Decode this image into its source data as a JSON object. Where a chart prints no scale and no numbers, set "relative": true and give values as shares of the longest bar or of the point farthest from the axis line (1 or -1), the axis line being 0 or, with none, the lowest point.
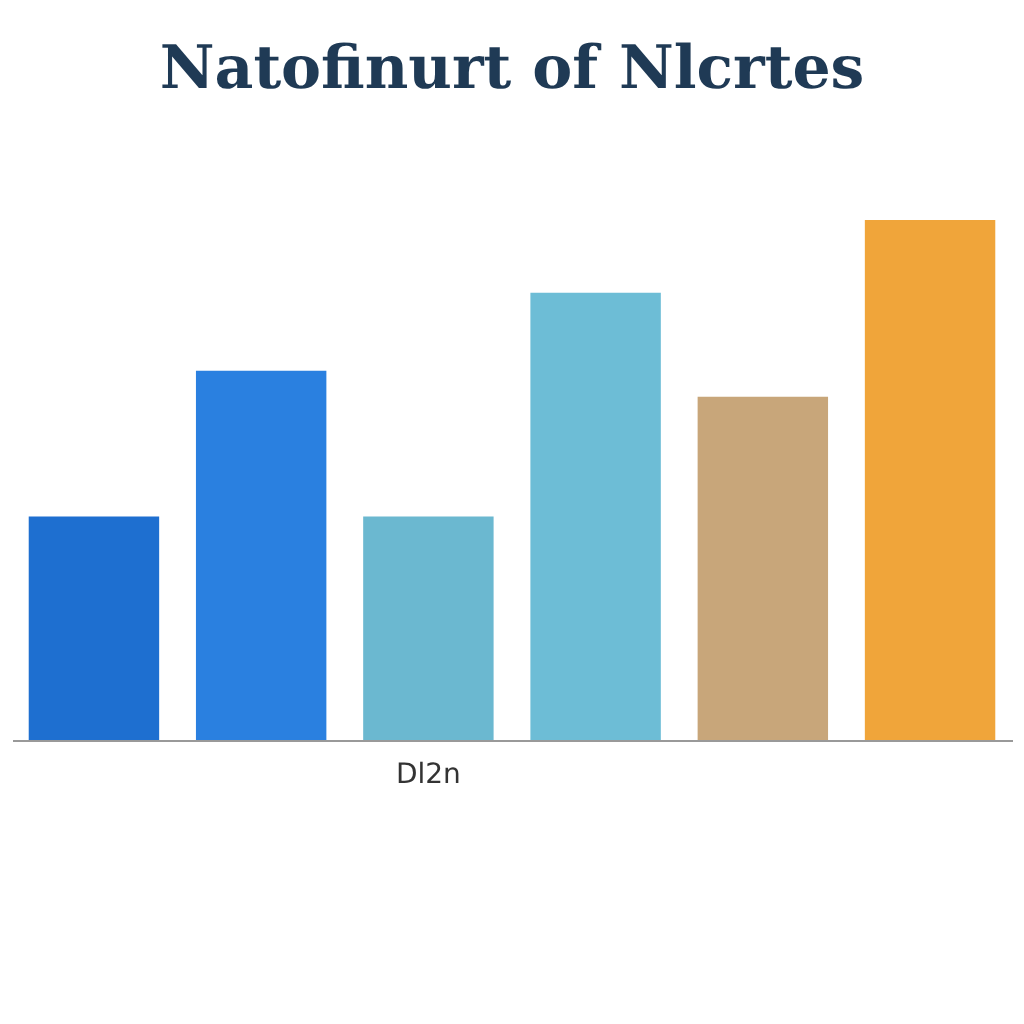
{
  "chart_data": {
    "type": "bar",
    "title": "Natofinurt of Nlcrtes",
    "categories": [
      null,
      null,
      "Dl2n",
      null,
      null,
      null
    ],
    "values": [
      0.43,
      0.71,
      0.43,
      0.86,
      0.66,
      1
    ],
    "colors": [
      "#1e6fd0",
      "#2a80e0",
      "#6bb8d0",
      "#6dbdd6",
      "#c8a67a",
      "#f0a53a"
    ],
    "relative": true,
    "legend": false
  }
}
